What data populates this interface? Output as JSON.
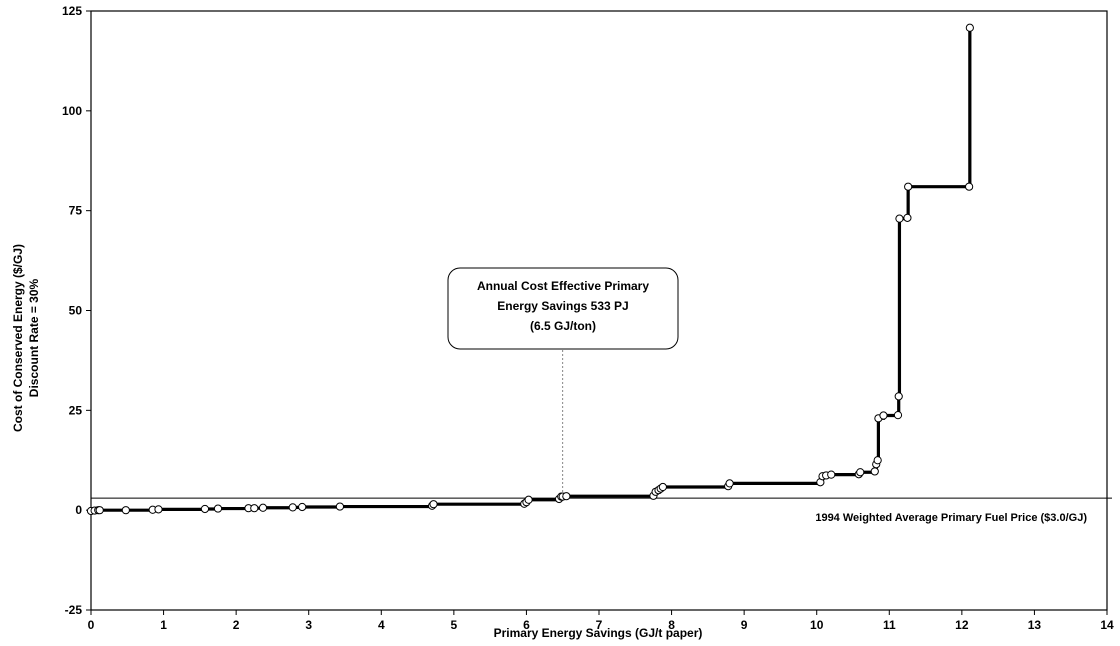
{
  "chart_data": {
    "type": "line",
    "step": true,
    "xlabel": "Primary Energy Savings (GJ/t paper)",
    "ylabel_lines": [
      "Cost of Conserved Energy ($/GJ)",
      "Discount Rate = 30%"
    ],
    "xlim": [
      0,
      14
    ],
    "ylim": [
      -25,
      125
    ],
    "xticks": [
      0,
      1,
      2,
      3,
      4,
      5,
      6,
      7,
      8,
      9,
      10,
      11,
      12,
      13,
      14
    ],
    "yticks": [
      -25,
      0,
      25,
      50,
      75,
      100,
      125
    ],
    "grid": false,
    "reference_line": {
      "y": 3.0,
      "label": "1994 Weighted Average Primary Fuel Price  ($3.0/GJ)"
    },
    "annotation": {
      "lines": [
        "Annual Cost Effective Primary",
        "Energy Savings 533 PJ",
        "(6.5 GJ/ton)"
      ],
      "x": 6.5
    },
    "series": [
      {
        "marker": "open-circle",
        "points": [
          [
            0.0,
            -0.2
          ],
          [
            0.05,
            -0.1
          ],
          [
            0.1,
            0.0
          ],
          [
            0.12,
            0.0
          ],
          [
            0.48,
            0.0
          ],
          [
            0.85,
            0.1
          ],
          [
            0.93,
            0.2
          ],
          [
            1.57,
            0.3
          ],
          [
            1.75,
            0.4
          ],
          [
            2.17,
            0.5
          ],
          [
            2.25,
            0.5
          ],
          [
            2.37,
            0.6
          ],
          [
            2.78,
            0.7
          ],
          [
            2.91,
            0.8
          ],
          [
            3.43,
            0.9
          ],
          [
            4.7,
            1.1
          ],
          [
            4.72,
            1.5
          ],
          [
            5.97,
            1.6
          ],
          [
            6.0,
            2.0
          ],
          [
            6.03,
            2.6
          ],
          [
            6.45,
            2.8
          ],
          [
            6.48,
            3.4
          ],
          [
            6.5,
            3.4
          ],
          [
            6.55,
            3.5
          ],
          [
            7.75,
            3.6
          ],
          [
            7.78,
            4.6
          ],
          [
            7.82,
            5.0
          ],
          [
            7.85,
            5.4
          ],
          [
            7.88,
            5.8
          ],
          [
            8.78,
            6.0
          ],
          [
            8.8,
            6.7
          ],
          [
            10.05,
            7.0
          ],
          [
            10.08,
            8.5
          ],
          [
            10.13,
            8.7
          ],
          [
            10.2,
            8.9
          ],
          [
            10.58,
            9.0
          ],
          [
            10.6,
            9.5
          ],
          [
            10.8,
            9.7
          ],
          [
            10.82,
            11.5
          ],
          [
            10.84,
            12.5
          ],
          [
            10.85,
            23.0
          ],
          [
            10.92,
            23.7
          ],
          [
            11.12,
            23.8
          ],
          [
            11.13,
            28.5
          ],
          [
            11.14,
            73.0
          ],
          [
            11.25,
            73.2
          ],
          [
            11.26,
            81.0
          ],
          [
            12.1,
            81.0
          ],
          [
            12.11,
            120.8
          ]
        ]
      }
    ]
  }
}
